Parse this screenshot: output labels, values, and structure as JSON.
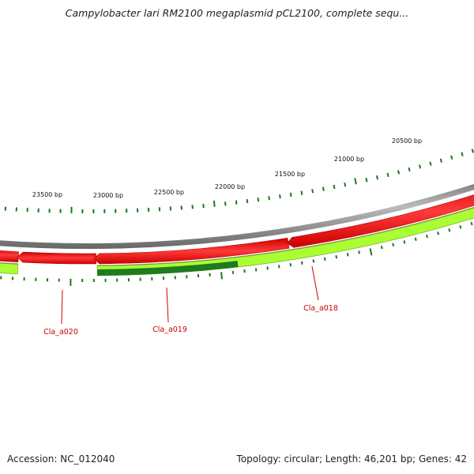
{
  "title": "Campylobacter lari RM2100 megaplasmid pCL2100, complete sequ...",
  "footer": {
    "accession": "Accession: NC_012040",
    "summary": "Topology: circular; Length: 46,201 bp; Genes: 42"
  },
  "map": {
    "scale_labels": [
      "20500 bp",
      "21000 bp",
      "21500 bp",
      "22000 bp",
      "22500 bp",
      "23000 bp",
      "23500 bp"
    ],
    "gene_labels": [
      "Cla_a018",
      "Cla_a019",
      "Cla_a020"
    ],
    "colors": {
      "backbone": "#8c8c8c",
      "gene_red": "#ff0000",
      "gene_light_green": "#aaff33",
      "gene_dark_green": "#1e7b1e",
      "tick": "#1a7a1a",
      "label": "#cc0000"
    }
  }
}
